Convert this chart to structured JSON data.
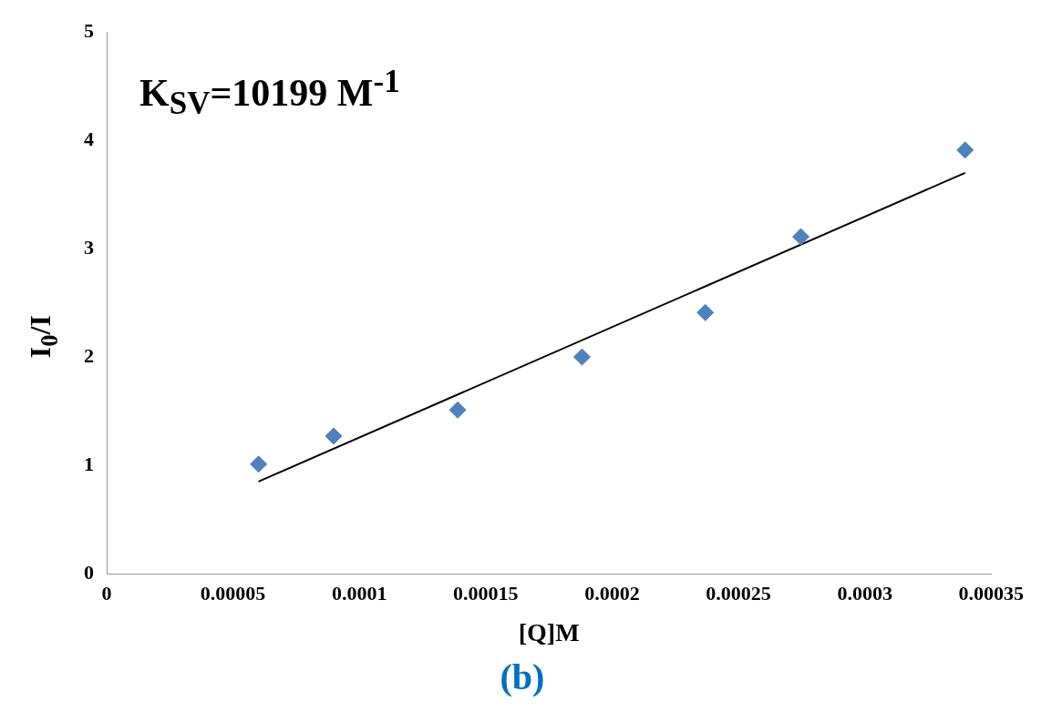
{
  "chart_data": {
    "type": "scatter",
    "xlabel": "[Q]M",
    "ylabel": "I$_{0}$/I",
    "xlim": [
      0,
      0.00035
    ],
    "xticks": [
      0,
      {
        "value": 5e-05,
        "label": "0.00005"
      },
      {
        "value": 0.0001,
        "label": "0.0001"
      },
      {
        "value": 0.00015,
        "label": "0.00015"
      },
      {
        "value": 0.0002,
        "label": "0.0002"
      },
      {
        "value": 0.00025,
        "label": "0.00025"
      },
      {
        "value": 0.0003,
        "label": "0.0003"
      },
      {
        "value": 0.00035,
        "label": "0.00035"
      }
    ],
    "ylim": [
      0,
      5
    ],
    "yticks": [
      0,
      1,
      2,
      3,
      4,
      5
    ],
    "grid": false,
    "legend": false,
    "series": [
      {
        "color": "#4f81bd",
        "marker": "diamond",
        "x": [
          6.01e-05,
          8.98e-05,
          0.0001389,
          0.0001881,
          0.0002369,
          0.0002747,
          0.0003397
        ],
        "values": [
          1.01,
          1.27,
          1.51,
          2.0,
          2.41,
          3.11,
          3.91
        ]
      },
      {
        "type": "line",
        "color": "#000000",
        "marker": "none",
        "x": [
          6.01e-05,
          0.0003397
        ],
        "values": [
          0.85,
          3.7
        ]
      }
    ],
    "annotations": [
      "K$_{SV}$=10199 M$^{-1}$",
      "(b)"
    ]
  }
}
